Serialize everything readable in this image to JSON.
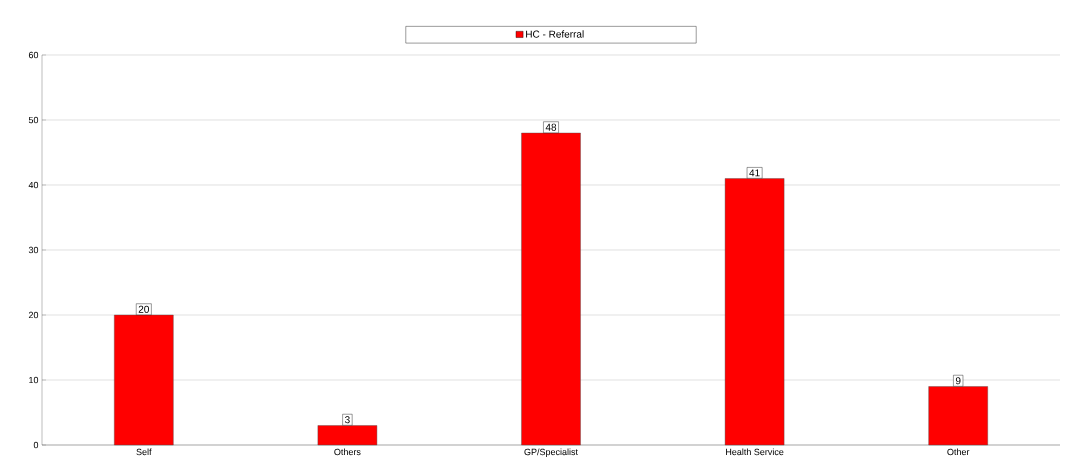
{
  "chart_data": {
    "type": "bar",
    "categories": [
      "Self",
      "Others",
      "GP/Specialist",
      "Health Service",
      "Other"
    ],
    "series": [
      {
        "name": "HC - Referral",
        "color": "#ff0000",
        "values": [
          20,
          3,
          48,
          41,
          9
        ]
      }
    ],
    "ylim": [
      0,
      60
    ],
    "yticks": [
      0,
      10,
      20,
      30,
      40,
      50,
      60
    ],
    "grid": "y",
    "legend": "top",
    "data_labels": true
  }
}
